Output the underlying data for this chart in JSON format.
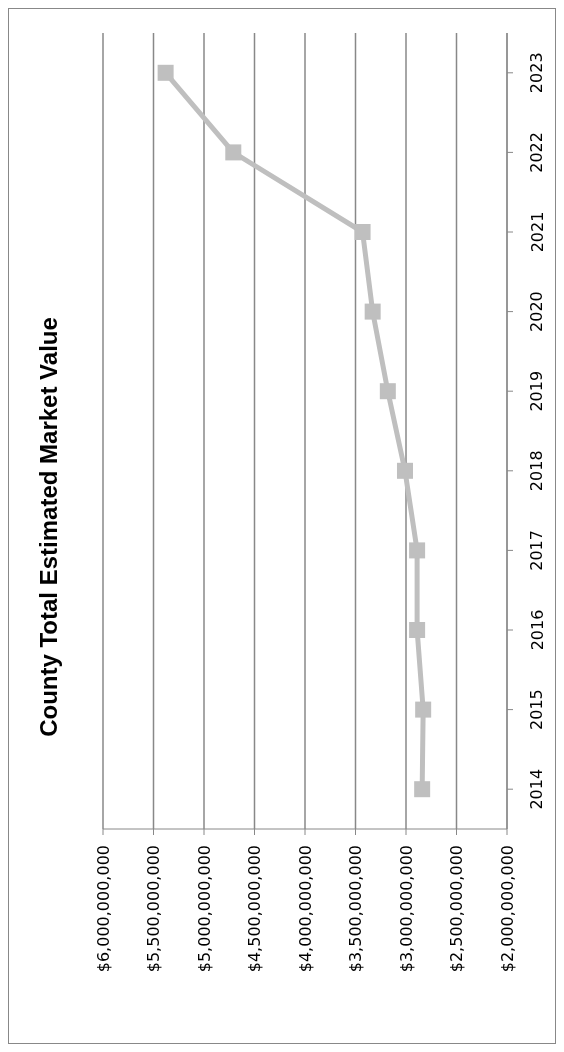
{
  "chart_data": {
    "type": "line",
    "title": "County Total Estimated Market Value",
    "orientation": "horizontal",
    "categories": [
      "2023",
      "2022",
      "2021",
      "2020",
      "2019",
      "2018",
      "2017",
      "2016",
      "2015",
      "2014"
    ],
    "values": [
      5380000000,
      4710000000,
      3430000000,
      3330000000,
      3180000000,
      3010000000,
      2890000000,
      2890000000,
      2830000000,
      2840000000
    ],
    "color": "#bfbfbf",
    "marker": "square",
    "line_style": "solid",
    "grid": "x",
    "legend": false,
    "xlim": [
      6000000000,
      2000000000
    ],
    "xticks": [
      {
        "value": 6000000000,
        "label": "$6,000,000,000"
      },
      {
        "value": 5500000000,
        "label": "$5,500,000,000"
      },
      {
        "value": 5000000000,
        "label": "$5,000,000,000"
      },
      {
        "value": 4500000000,
        "label": "$4,500,000,000"
      },
      {
        "value": 4000000000,
        "label": "$4,000,000,000"
      },
      {
        "value": 3500000000,
        "label": "$3,500,000,000"
      },
      {
        "value": 3000000000,
        "label": "$3,000,000,000"
      },
      {
        "value": 2500000000,
        "label": "$2,500,000,000"
      },
      {
        "value": 2000000000,
        "label": "$2,000,000,000"
      }
    ]
  }
}
